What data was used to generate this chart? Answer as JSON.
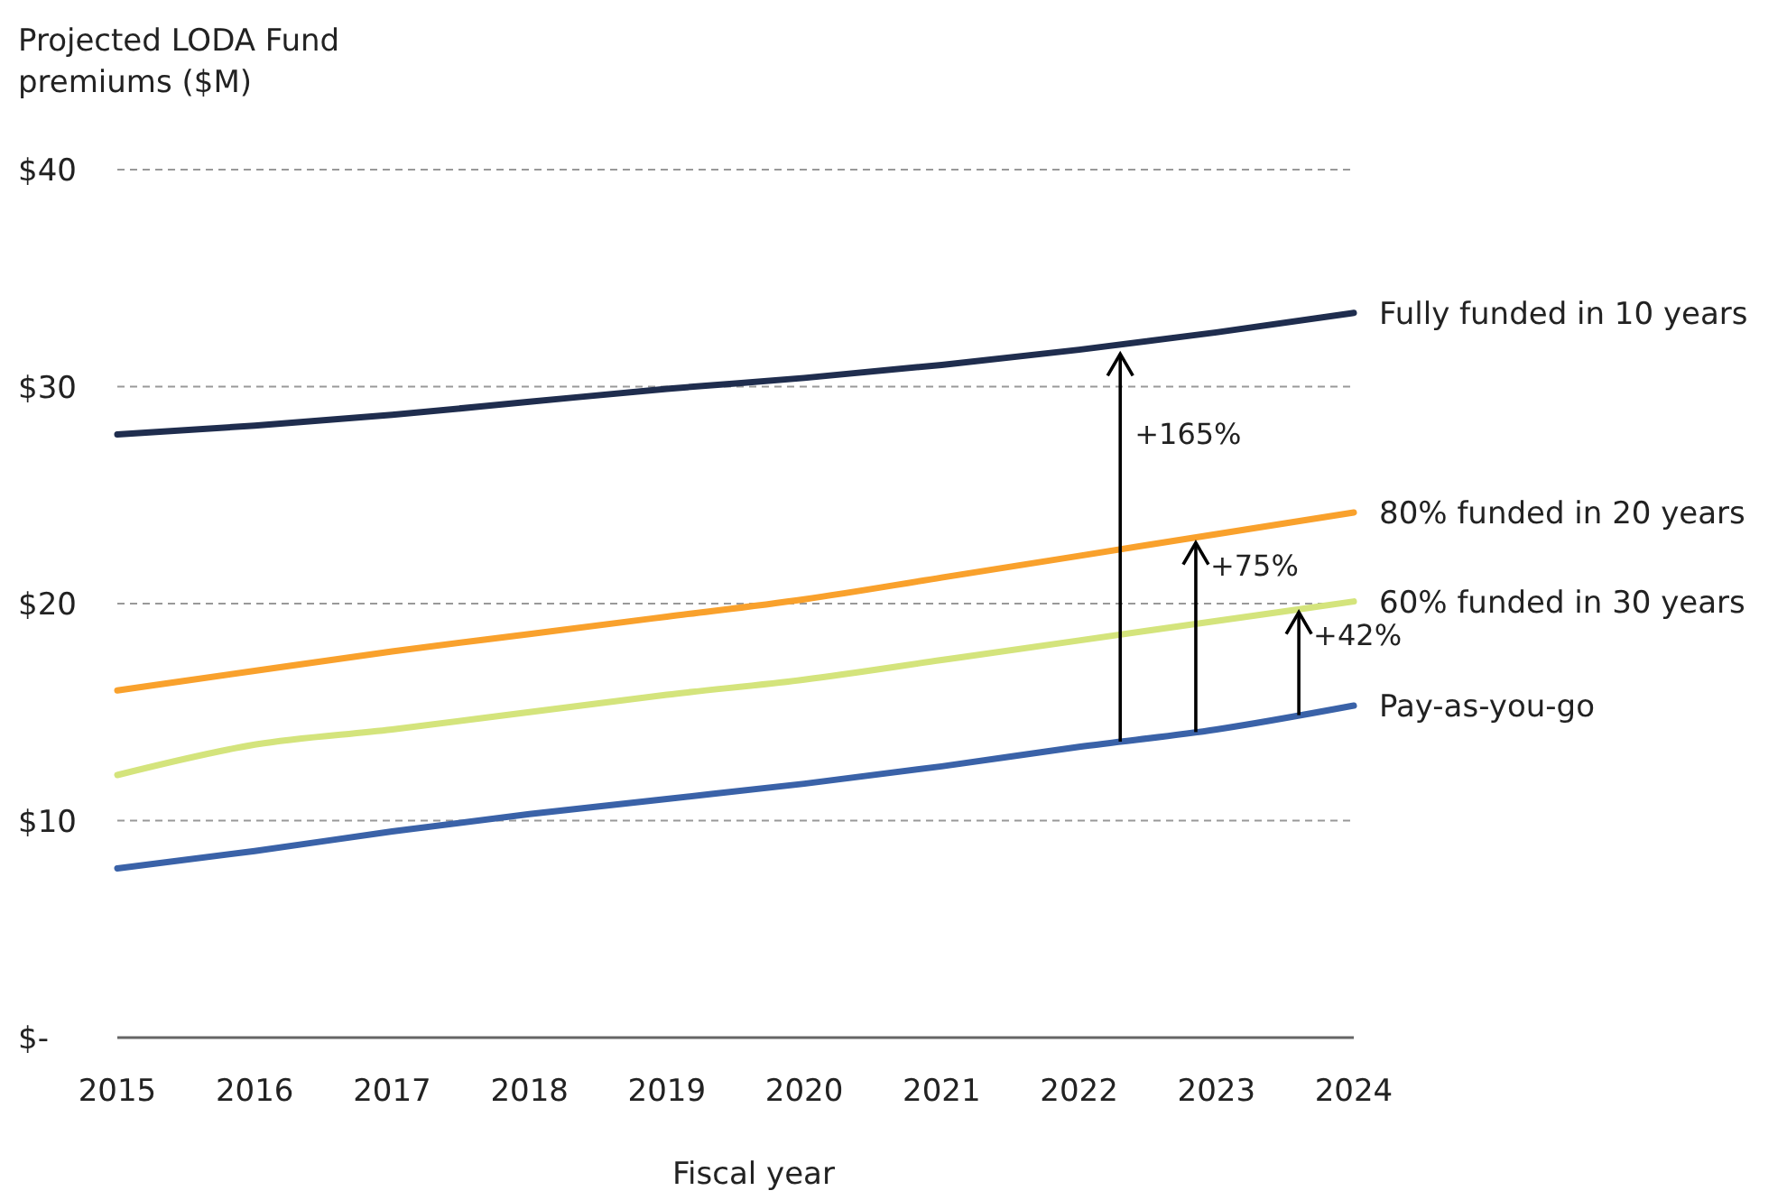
{
  "chart_data": {
    "type": "line",
    "ylabel": "Projected LODA Fund premiums ($M)",
    "xlabel": "Fiscal year",
    "x": [
      2015,
      2016,
      2017,
      2018,
      2019,
      2020,
      2021,
      2022,
      2023,
      2024
    ],
    "xlim": [
      2015,
      2024
    ],
    "xticks": [
      2015,
      2016,
      2017,
      2018,
      2019,
      2020,
      2021,
      2022,
      2023,
      2024
    ],
    "ylim": [
      0,
      40
    ],
    "yticks": [
      {
        "value": 0,
        "label": "$-"
      },
      {
        "value": 10,
        "label": "$10"
      },
      {
        "value": 20,
        "label": "$20"
      },
      {
        "value": 30,
        "label": "$30"
      },
      {
        "value": 40,
        "label": "$40"
      }
    ],
    "grid": "y",
    "legend": false,
    "line_style": "solid",
    "series": [
      {
        "name": "Fully funded in 10 years",
        "color": "#1f2d4e",
        "values": [
          27.8,
          28.2,
          28.7,
          29.3,
          29.9,
          30.4,
          31.0,
          31.7,
          32.5,
          33.4
        ]
      },
      {
        "name": "80% funded in 20 years",
        "color": "#f9a12c",
        "values": [
          16.0,
          16.9,
          17.8,
          18.6,
          19.4,
          20.2,
          21.2,
          22.2,
          23.2,
          24.2
        ]
      },
      {
        "name": "60% funded in 30 years",
        "color": "#d4e47c",
        "values": [
          12.1,
          13.5,
          14.2,
          15.0,
          15.8,
          16.5,
          17.4,
          18.3,
          19.2,
          20.1
        ]
      },
      {
        "name": "Pay-as-you-go",
        "color": "#3a62a8",
        "values": [
          7.8,
          8.6,
          9.5,
          10.3,
          11.0,
          11.7,
          12.5,
          13.4,
          14.2,
          15.3
        ]
      }
    ],
    "annotations": [
      {
        "text": "+165%",
        "x": 2022.3,
        "y": 31.5
      },
      {
        "text": "+75%",
        "x": 2022.85,
        "y": 22.8
      },
      {
        "text": "+42%",
        "x": 2023.6,
        "y": 19.6
      }
    ]
  }
}
